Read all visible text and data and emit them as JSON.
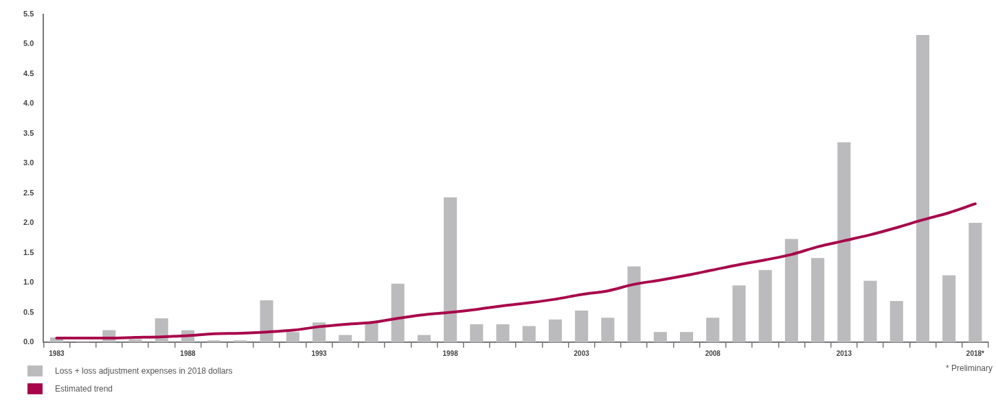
{
  "chart_data": {
    "type": "bar",
    "categories": [
      "1983",
      null,
      null,
      null,
      null,
      "1988",
      null,
      null,
      null,
      null,
      "1993",
      null,
      null,
      null,
      null,
      "1998",
      null,
      null,
      null,
      null,
      "2003",
      null,
      null,
      null,
      null,
      "2008",
      null,
      null,
      null,
      null,
      "2013",
      null,
      null,
      null,
      null,
      "2018*"
    ],
    "series": [
      {
        "name": "Loss + loss adjustment expenses in 2018 dollars",
        "color": "#bbbbbd",
        "values": [
          0.08,
          0.02,
          0.2,
          0.05,
          0.4,
          0.2,
          0.03,
          0.03,
          0.7,
          0.17,
          0.33,
          0.12,
          0.33,
          0.98,
          0.12,
          2.43,
          0.3,
          0.3,
          0.27,
          0.38,
          0.53,
          0.41,
          1.27,
          0.17,
          0.17,
          0.41,
          0.95,
          1.21,
          1.73,
          1.41,
          3.35,
          1.03,
          0.69,
          5.15,
          1.12,
          2.0
        ]
      },
      {
        "name": "Estimated trend",
        "type": "line",
        "color": "#a8064a",
        "values": [
          0.07,
          0.07,
          0.07,
          0.08,
          0.09,
          0.11,
          0.14,
          0.15,
          0.17,
          0.2,
          0.26,
          0.3,
          0.33,
          0.4,
          0.46,
          0.5,
          0.55,
          0.61,
          0.66,
          0.72,
          0.8,
          0.86,
          0.97,
          1.04,
          1.12,
          1.21,
          1.3,
          1.38,
          1.47,
          1.6,
          1.7,
          1.8,
          1.92,
          2.05,
          2.17,
          2.32
        ]
      }
    ],
    "ylim": [
      0,
      5.5
    ],
    "yticks": [
      {
        "value": 0,
        "label": "0.0"
      },
      {
        "value": 0.5,
        "label": "0.5"
      },
      {
        "value": 1,
        "label": "1.0"
      },
      {
        "value": 1.5,
        "label": "1.5"
      },
      {
        "value": 2,
        "label": "2.0"
      },
      {
        "value": 2.5,
        "label": "2.5"
      },
      {
        "value": 3,
        "label": "3.0"
      },
      {
        "value": 3.5,
        "label": "3.5"
      },
      {
        "value": 4,
        "label": "4.0"
      },
      {
        "value": 4.5,
        "label": "4.5"
      },
      {
        "value": 5,
        "label": "5.0"
      },
      {
        "value": 5.5,
        "label": "5.5"
      }
    ],
    "grid": false,
    "legend": "bottom left",
    "marker": "none",
    "annotations": [
      "* Preliminary"
    ]
  }
}
